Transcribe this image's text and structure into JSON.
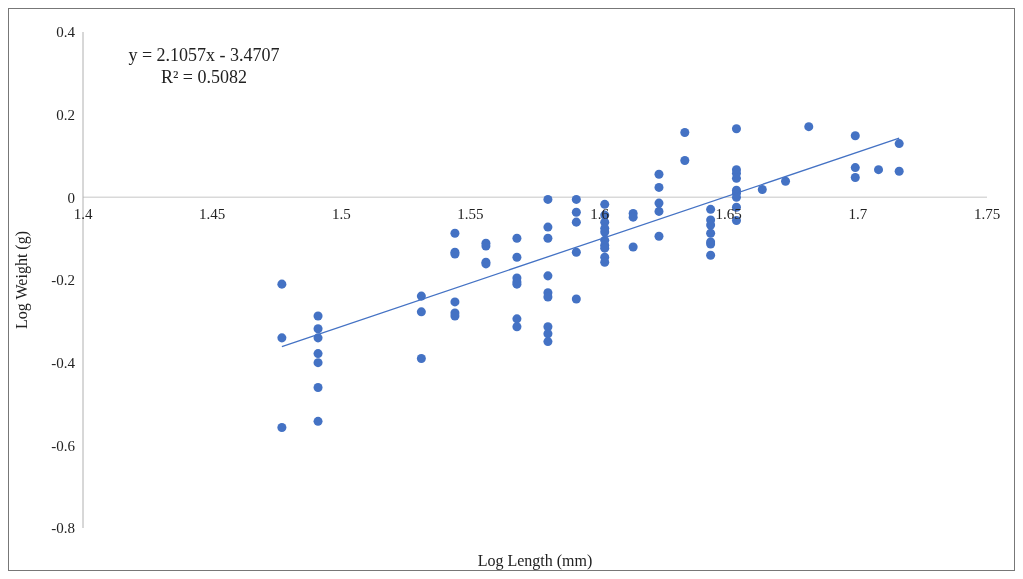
{
  "chart_data": {
    "type": "scatter",
    "xlabel": "Log Length (mm)",
    "ylabel": "Log Weight  (g)",
    "xlim": [
      1.4,
      1.75
    ],
    "xticks": [
      1.4,
      1.45,
      1.5,
      1.55,
      1.6,
      1.65,
      1.7,
      1.75
    ],
    "ylim": [
      -0.8,
      0.4
    ],
    "yticks": [
      -0.8,
      -0.6,
      -0.4,
      -0.2,
      0,
      0.2,
      0.4
    ],
    "grid": false,
    "legend": false,
    "marker": "circle",
    "annotations": [
      "y = 2.1057x - 3.4707",
      "R² = 0.5082"
    ],
    "series": [
      {
        "color": "#4472c4",
        "x": [
          1.477,
          1.477,
          1.477,
          1.491,
          1.491,
          1.491,
          1.491,
          1.491,
          1.491,
          1.491,
          1.531,
          1.531,
          1.531,
          1.544,
          1.544,
          1.544,
          1.544,
          1.544,
          1.544,
          1.556,
          1.556,
          1.556,
          1.556,
          1.568,
          1.568,
          1.568,
          1.568,
          1.568,
          1.568,
          1.568,
          1.58,
          1.58,
          1.58,
          1.58,
          1.58,
          1.58,
          1.58,
          1.58,
          1.58,
          1.591,
          1.591,
          1.591,
          1.591,
          1.591,
          1.602,
          1.602,
          1.602,
          1.602,
          1.602,
          1.602,
          1.602,
          1.602,
          1.602,
          1.602,
          1.613,
          1.613,
          1.613,
          1.623,
          1.623,
          1.623,
          1.623,
          1.623,
          1.633,
          1.633,
          1.643,
          1.643,
          1.643,
          1.643,
          1.643,
          1.643,
          1.643,
          1.653,
          1.653,
          1.653,
          1.653,
          1.653,
          1.653,
          1.653,
          1.653,
          1.653,
          1.663,
          1.672,
          1.681,
          1.699,
          1.699,
          1.699,
          1.708,
          1.716,
          1.716
        ],
        "values": [
          -0.21,
          -0.34,
          -0.557,
          -0.287,
          -0.318,
          -0.34,
          -0.378,
          -0.4,
          -0.46,
          -0.542,
          -0.239,
          -0.277,
          -0.39,
          -0.087,
          -0.133,
          -0.137,
          -0.253,
          -0.28,
          -0.287,
          -0.111,
          -0.118,
          -0.157,
          -0.161,
          -0.099,
          -0.145,
          -0.195,
          -0.205,
          -0.21,
          -0.294,
          -0.313,
          -0.005,
          -0.072,
          -0.099,
          -0.19,
          -0.231,
          -0.241,
          -0.313,
          -0.33,
          -0.349,
          -0.005,
          -0.036,
          -0.06,
          -0.133,
          -0.246,
          -0.017,
          -0.043,
          -0.06,
          -0.075,
          -0.084,
          -0.104,
          -0.116,
          -0.123,
          -0.145,
          -0.157,
          -0.039,
          -0.048,
          -0.12,
          0.056,
          0.024,
          -0.014,
          -0.034,
          -0.094,
          0.157,
          0.089,
          -0.029,
          -0.055,
          -0.067,
          -0.087,
          -0.108,
          -0.113,
          -0.14,
          0.166,
          0.067,
          0.058,
          0.046,
          0.017,
          0.01,
          0,
          -0.024,
          -0.056,
          0.019,
          0.039,
          0.171,
          0.149,
          0.072,
          0.048,
          0.067,
          0.13,
          0.063
        ]
      },
      {
        "type": "line",
        "marker": "none",
        "color": "#4472c4",
        "x": [
          1.477,
          1.716
        ],
        "values": [
          -0.361,
          0.143
        ]
      }
    ]
  }
}
